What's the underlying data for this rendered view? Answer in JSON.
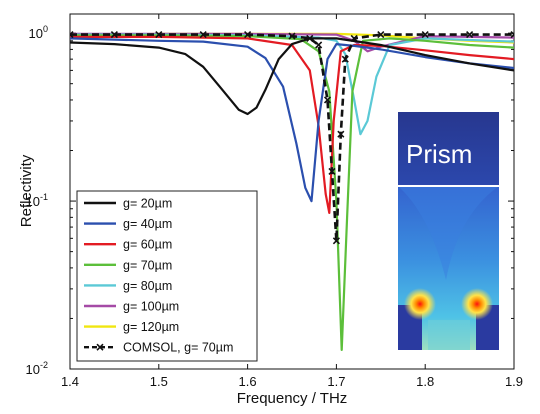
{
  "chart_data": {
    "type": "line",
    "xlabel": "Frequency / THz",
    "ylabel": "Reflectivity",
    "xlim": [
      1.4,
      1.9
    ],
    "ylim": [
      0.01,
      1.3
    ],
    "yscale": "log",
    "grid": false,
    "legend_position": "bottom-left",
    "x_ticks": [
      {
        "value": 1.4,
        "label": "1.4"
      },
      {
        "value": 1.5,
        "label": "1.5"
      },
      {
        "value": 1.6,
        "label": "1.6"
      },
      {
        "value": 1.7,
        "label": "1.7"
      },
      {
        "value": 1.8,
        "label": "1.8"
      },
      {
        "value": 1.9,
        "label": "1.9"
      }
    ],
    "y_ticks": [
      {
        "value": 1,
        "base": "10",
        "exp": "0"
      },
      {
        "value": 0.1,
        "base": "10",
        "exp": "-1"
      },
      {
        "value": 0.01,
        "base": "10",
        "exp": "-2"
      }
    ],
    "series": [
      {
        "name": "g= 20µm",
        "color": "#111111",
        "style": "solid",
        "x": [
          1.4,
          1.45,
          1.5,
          1.53,
          1.55,
          1.57,
          1.59,
          1.6,
          1.61,
          1.62,
          1.635,
          1.65,
          1.67,
          1.7,
          1.75,
          1.8,
          1.85,
          1.9
        ],
        "y": [
          0.88,
          0.86,
          0.82,
          0.75,
          0.63,
          0.47,
          0.35,
          0.33,
          0.36,
          0.46,
          0.7,
          0.86,
          0.93,
          0.93,
          0.85,
          0.74,
          0.66,
          0.6
        ]
      },
      {
        "name": "g= 40µm",
        "color": "#2b4fae",
        "style": "solid",
        "x": [
          1.4,
          1.5,
          1.55,
          1.6,
          1.62,
          1.64,
          1.655,
          1.665,
          1.672,
          1.68,
          1.69,
          1.7,
          1.72,
          1.75,
          1.8,
          1.85,
          1.9
        ],
        "y": [
          0.93,
          0.9,
          0.89,
          0.83,
          0.71,
          0.48,
          0.22,
          0.12,
          0.1,
          0.3,
          0.7,
          0.86,
          0.84,
          0.8,
          0.72,
          0.66,
          0.62
        ]
      },
      {
        "name": "g= 60µm",
        "color": "#e31b23",
        "style": "solid",
        "x": [
          1.4,
          1.5,
          1.6,
          1.65,
          1.67,
          1.68,
          1.688,
          1.692,
          1.697,
          1.705,
          1.72,
          1.75,
          1.8,
          1.85,
          1.9
        ],
        "y": [
          0.95,
          0.95,
          0.93,
          0.85,
          0.6,
          0.28,
          0.11,
          0.085,
          0.3,
          0.78,
          0.85,
          0.84,
          0.79,
          0.74,
          0.7
        ]
      },
      {
        "name": "g= 70µm",
        "color": "#5cbf3a",
        "style": "solid",
        "x": [
          1.4,
          1.5,
          1.6,
          1.66,
          1.68,
          1.692,
          1.7,
          1.706,
          1.712,
          1.718,
          1.73,
          1.76,
          1.8,
          1.85,
          1.9
        ],
        "y": [
          0.97,
          0.97,
          0.96,
          0.92,
          0.78,
          0.45,
          0.1,
          0.013,
          0.08,
          0.45,
          0.9,
          0.93,
          0.9,
          0.85,
          0.82
        ]
      },
      {
        "name": "g= 80µm",
        "color": "#5bc9d6",
        "style": "solid",
        "x": [
          1.4,
          1.5,
          1.6,
          1.68,
          1.7,
          1.71,
          1.72,
          1.727,
          1.735,
          1.745,
          1.76,
          1.8,
          1.85,
          1.9
        ],
        "y": [
          0.98,
          0.98,
          0.97,
          0.94,
          0.9,
          0.75,
          0.4,
          0.25,
          0.3,
          0.55,
          0.85,
          0.93,
          0.91,
          0.89
        ]
      },
      {
        "name": "g= 100µm",
        "color": "#a54aa6",
        "style": "solid",
        "x": [
          1.4,
          1.5,
          1.6,
          1.7,
          1.72,
          1.735,
          1.75,
          1.8,
          1.85,
          1.9
        ],
        "y": [
          0.99,
          0.99,
          0.99,
          0.98,
          0.9,
          0.78,
          0.83,
          0.96,
          0.95,
          0.94
        ]
      },
      {
        "name": "g= 120µm",
        "color": "#f0e610",
        "style": "solid",
        "x": [
          1.4,
          1.5,
          1.6,
          1.65,
          1.7,
          1.75,
          1.8,
          1.85,
          1.9
        ],
        "y": [
          0.97,
          0.99,
          0.99,
          0.99,
          0.99,
          0.97,
          0.93,
          0.9,
          0.88
        ]
      },
      {
        "name": "COMSOL, g=  70µm",
        "color": "#111111",
        "style": "dashed",
        "x": [
          1.4,
          1.45,
          1.5,
          1.55,
          1.6,
          1.65,
          1.67,
          1.68,
          1.69,
          1.695,
          1.7,
          1.705,
          1.71,
          1.72,
          1.75,
          1.8,
          1.85,
          1.9
        ],
        "y": [
          0.98,
          0.98,
          0.98,
          0.98,
          0.98,
          0.96,
          0.93,
          0.85,
          0.4,
          0.15,
          0.058,
          0.25,
          0.7,
          0.93,
          0.98,
          0.98,
          0.98,
          0.98
        ]
      }
    ],
    "inset": {
      "label": "Prism"
    }
  }
}
